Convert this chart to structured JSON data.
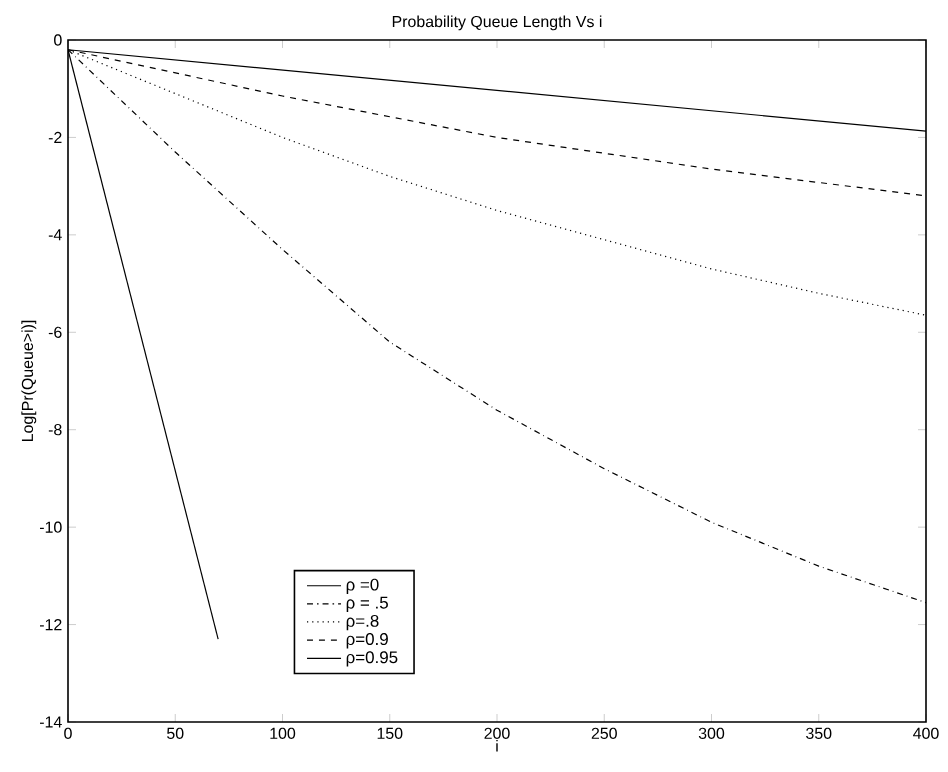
{
  "chart_data": {
    "type": "line",
    "title": "Probability Queue Length Vs i",
    "xlabel": "i",
    "ylabel": "Log[Pr(Queue>i)]",
    "xlim": [
      0,
      400
    ],
    "ylim": [
      -14,
      0
    ],
    "xticks": [
      0,
      50,
      100,
      150,
      200,
      250,
      300,
      350,
      400
    ],
    "yticks": [
      -14,
      -12,
      -10,
      -8,
      -6,
      -4,
      -2,
      0
    ],
    "legend": "bottom",
    "grid": false,
    "series": [
      {
        "name": "ρ =0",
        "color": "#000000",
        "line_style": "solid",
        "x": [
          0,
          70
        ],
        "values": [
          -0.2,
          -12.3
        ]
      },
      {
        "name": "ρ = .5",
        "color": "#000000",
        "line_style": "dashdot",
        "x": [
          0,
          50,
          100,
          150,
          200,
          250,
          300,
          350,
          400
        ],
        "values": [
          -0.2,
          -2.3,
          -4.3,
          -6.2,
          -7.6,
          -8.8,
          -9.9,
          -10.8,
          -11.55
        ]
      },
      {
        "name": "ρ=.8",
        "color": "#000000",
        "line_style": "dotted",
        "x": [
          0,
          50,
          100,
          150,
          200,
          250,
          300,
          350,
          400
        ],
        "values": [
          -0.2,
          -1.1,
          -2.0,
          -2.8,
          -3.5,
          -4.1,
          -4.7,
          -5.2,
          -5.65
        ]
      },
      {
        "name": "ρ=0.9",
        "color": "#000000",
        "line_style": "dashed",
        "x": [
          0,
          100,
          200,
          300,
          400
        ],
        "values": [
          -0.2,
          -1.15,
          -2.0,
          -2.65,
          -3.2
        ]
      },
      {
        "name": "ρ=0.95",
        "color": "#000000",
        "line_style": "solid",
        "x": [
          0,
          400
        ],
        "values": [
          -0.2,
          -1.87
        ]
      }
    ]
  }
}
